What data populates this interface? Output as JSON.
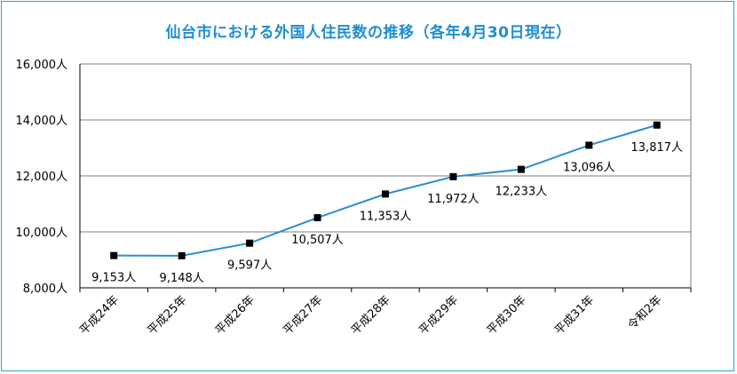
{
  "chart_data": {
    "type": "line",
    "title": "仙台市における外国人住民数の推移（各年4月30日現在）",
    "categories": [
      "平成24年",
      "平成25年",
      "平成26年",
      "平成27年",
      "平成28年",
      "平成29年",
      "平成30年",
      "平成31年",
      "令和2年"
    ],
    "series": [
      {
        "values": [
          9153,
          9148,
          9597,
          10507,
          11353,
          11972,
          12233,
          13096,
          13817
        ],
        "labels": [
          "9,153人",
          "9,148人",
          "9,597人",
          "10,507人",
          "11,353人",
          "11,972人",
          "12,233人",
          "13,096人",
          "13,817人"
        ]
      }
    ],
    "y_ticks": [
      8000,
      10000,
      12000,
      14000,
      16000
    ],
    "y_tick_labels": [
      "8,000人",
      "10,000人",
      "12,000人",
      "14,000人",
      "16,000人"
    ],
    "ylim": [
      8000,
      16000
    ],
    "grid": true,
    "colors": {
      "line": "#2a8fcf",
      "marker": "#000000",
      "title": "#1f8ecf",
      "frame": "#2aa7c9"
    }
  }
}
